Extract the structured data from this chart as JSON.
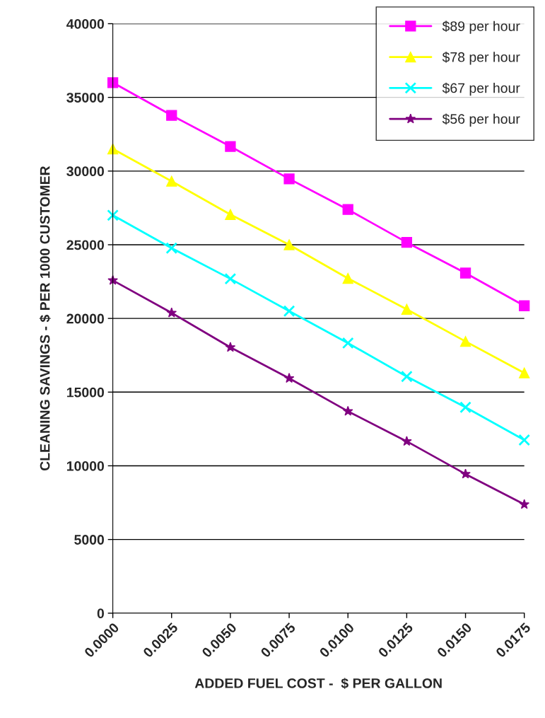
{
  "chart_data": {
    "type": "line",
    "xlabel": "ADDED FUEL COST -  $ PER GALLON",
    "ylabel": "CLEANING SAVINGS - $ PER 1000 CUSTOMER",
    "x": [
      0.0,
      0.0025,
      0.005,
      0.0075,
      0.01,
      0.0125,
      0.015,
      0.0175
    ],
    "xlim": [
      0,
      0.0175
    ],
    "xticks": [
      {
        "value": 0.0,
        "label": "0.0000"
      },
      {
        "value": 0.0025,
        "label": "0.0025"
      },
      {
        "value": 0.005,
        "label": "0.0050"
      },
      {
        "value": 0.0075,
        "label": "0.0075"
      },
      {
        "value": 0.01,
        "label": "0.0100"
      },
      {
        "value": 0.0125,
        "label": "0.0125"
      },
      {
        "value": 0.015,
        "label": "0.0150"
      },
      {
        "value": 0.0175,
        "label": "0.0175"
      }
    ],
    "ylim": [
      0,
      40000
    ],
    "yticks": [
      0,
      5000,
      10000,
      15000,
      20000,
      25000,
      30000,
      35000,
      40000
    ],
    "grid": "y",
    "legend": "top right",
    "line_style": "solid",
    "series": [
      {
        "name": "$89 per hour",
        "color": "#ff00ff",
        "marker": "square",
        "values": [
          36000,
          33780,
          31670,
          29470,
          27390,
          25160,
          23080,
          20860
        ]
      },
      {
        "name": "$78 per hour",
        "color": "#ffff00",
        "marker": "triangle",
        "values": [
          31500,
          29310,
          27050,
          25000,
          22720,
          20620,
          18440,
          16300
        ]
      },
      {
        "name": "$67 per hour",
        "color": "#00ffff",
        "marker": "cross",
        "values": [
          27000,
          24770,
          22690,
          20500,
          18330,
          16060,
          13970,
          11750
        ]
      },
      {
        "name": "$56 per hour",
        "color": "#800080",
        "marker": "star",
        "values": [
          22580,
          20380,
          18040,
          15940,
          13700,
          11660,
          9440,
          7380
        ]
      }
    ]
  }
}
